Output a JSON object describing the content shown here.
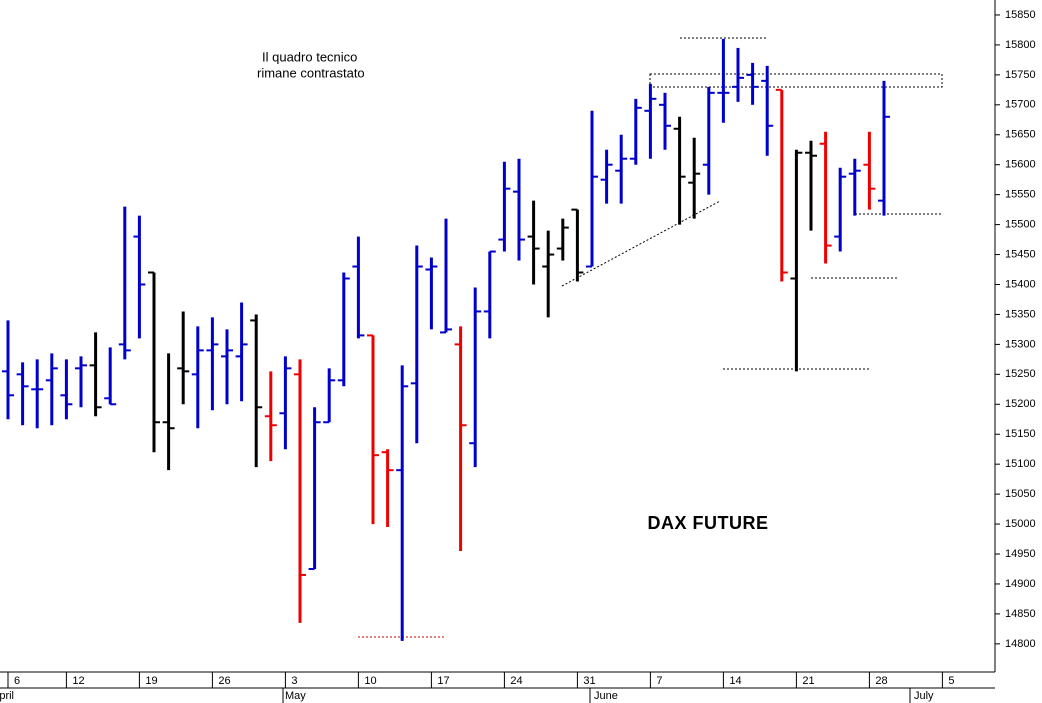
{
  "chart_data": {
    "type": "ohlc",
    "title": "DAX FUTURE",
    "annotations": [
      "Il quadro tecnico",
      "rimane contrastato"
    ],
    "categories": [
      "6",
      null,
      null,
      null,
      "12",
      null,
      null,
      null,
      null,
      "19",
      null,
      null,
      null,
      null,
      "26",
      null,
      null,
      null,
      null,
      "3",
      null,
      null,
      null,
      null,
      "10",
      null,
      null,
      null,
      null,
      "17",
      null,
      null,
      null,
      null,
      "24",
      null,
      null,
      null,
      null,
      "31",
      null,
      null,
      null,
      null,
      "7",
      null,
      null,
      null,
      null,
      "14",
      null,
      null,
      null,
      null,
      "21",
      null,
      null,
      null,
      null,
      "28",
      null,
      null,
      null,
      null,
      "5"
    ],
    "months": [
      "April",
      "May",
      "June",
      "July"
    ],
    "open": [
      15255,
      15250,
      15225,
      15240,
      15215,
      15260,
      15265,
      15210,
      15300,
      15480,
      15420,
      15170,
      15260,
      15250,
      15290,
      15280,
      15280,
      15340,
      15180,
      15185,
      15250,
      14925,
      15170,
      15240,
      15430,
      15315,
      15120,
      15090,
      15235,
      15425,
      15320,
      15300,
      15135,
      15355,
      15475,
      15555,
      15480,
      15430,
      15460,
      15525,
      15430,
      15575,
      15590,
      15610,
      15690,
      15700,
      15660,
      15570,
      15600,
      15720,
      15730,
      15750,
      15740,
      15725,
      15410,
      15620,
      15635,
      15480,
      15585,
      15600,
      15540,
      null,
      null,
      null,
      null
    ],
    "high": [
      15340,
      15270,
      15275,
      15285,
      15275,
      15280,
      15320,
      15295,
      15530,
      15515,
      15420,
      15285,
      15355,
      15330,
      15345,
      15325,
      15370,
      15350,
      15255,
      15280,
      15275,
      15195,
      15260,
      15420,
      15480,
      15315,
      15125,
      15265,
      15465,
      15445,
      15510,
      15330,
      15395,
      15455,
      15605,
      15610,
      15540,
      15490,
      15510,
      15525,
      15690,
      15625,
      15650,
      15710,
      15735,
      15720,
      15680,
      15645,
      15730,
      15810,
      15795,
      15770,
      15765,
      15725,
      15625,
      15640,
      15655,
      15595,
      15610,
      15655,
      15740,
      null,
      null,
      null,
      null
    ],
    "low": [
      15175,
      15165,
      15160,
      15165,
      15175,
      15195,
      15180,
      15200,
      15275,
      15310,
      15120,
      15090,
      15200,
      15160,
      15190,
      15200,
      15205,
      15095,
      15105,
      15125,
      14835,
      14925,
      15170,
      15230,
      15310,
      15000,
      14995,
      14805,
      15135,
      15325,
      15320,
      14955,
      15095,
      15310,
      15455,
      15440,
      15400,
      15345,
      15440,
      15405,
      15430,
      15535,
      15535,
      15600,
      15610,
      15625,
      15500,
      15510,
      15550,
      15670,
      15705,
      15700,
      15615,
      15405,
      15255,
      15490,
      15435,
      15455,
      15515,
      15525,
      15515,
      null,
      null,
      null,
      null
    ],
    "close": [
      15215,
      15230,
      15225,
      15260,
      15200,
      15265,
      15195,
      15200,
      15290,
      15400,
      15170,
      15160,
      15255,
      15290,
      15300,
      15290,
      15300,
      15195,
      15165,
      15260,
      14915,
      15170,
      15240,
      15410,
      15315,
      15115,
      15090,
      15230,
      15430,
      15430,
      15325,
      15165,
      15355,
      15455,
      15560,
      15475,
      15460,
      15450,
      15495,
      15420,
      15580,
      15600,
      15610,
      15695,
      15710,
      15665,
      15580,
      15585,
      15720,
      15720,
      15745,
      15730,
      15665,
      15420,
      15620,
      15615,
      15465,
      15580,
      15590,
      15560,
      15680,
      null,
      null,
      null,
      null
    ],
    "bar_colors": [
      "#0000cc",
      "#0000cc",
      "#0000cc",
      "#0000cc",
      "#0000cc",
      "#0000cc",
      "#000000",
      "#0000cc",
      "#0000cc",
      "#0000cc",
      "#000000",
      "#000000",
      "#000000",
      "#0000cc",
      "#0000cc",
      "#0000cc",
      "#0000cc",
      "#000000",
      "#ee0000",
      "#0000cc",
      "#ee0000",
      "#0000cc",
      "#0000cc",
      "#0000cc",
      "#0000cc",
      "#ee0000",
      "#ee0000",
      "#0000cc",
      "#0000cc",
      "#0000cc",
      "#0000cc",
      "#ee0000",
      "#0000cc",
      "#0000cc",
      "#0000cc",
      "#0000cc",
      "#000000",
      "#000000",
      "#000000",
      "#000000",
      "#0000cc",
      "#0000cc",
      "#0000cc",
      "#0000cc",
      "#0000cc",
      "#0000cc",
      "#000000",
      "#000000",
      "#0000cc",
      "#0000cc",
      "#0000cc",
      "#0000cc",
      "#0000cc",
      "#ee0000",
      "#000000",
      "#000000",
      "#ee0000",
      "#0000cc",
      "#0000cc",
      "#ee0000",
      "#0000cc",
      "#000000",
      "#000000",
      "#000000",
      "#000000"
    ],
    "ylim": [
      14753,
      15875
    ],
    "yticks": [
      14800,
      14850,
      14900,
      14950,
      15000,
      15050,
      15100,
      15150,
      15200,
      15250,
      15300,
      15350,
      15400,
      15450,
      15500,
      15550,
      15600,
      15650,
      15700,
      15750,
      15800,
      15850
    ],
    "grid": false
  }
}
